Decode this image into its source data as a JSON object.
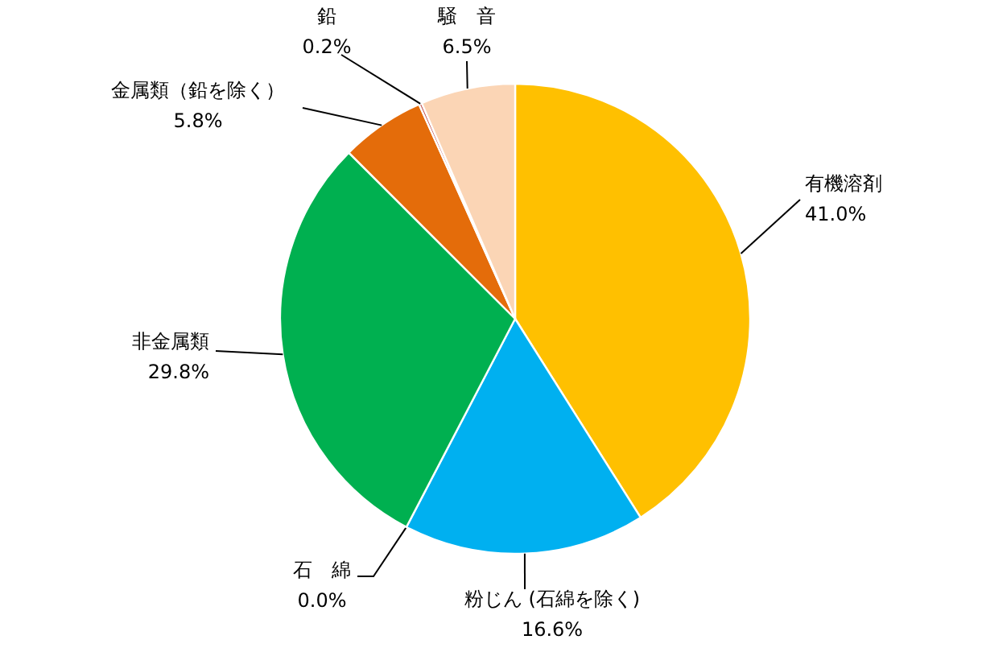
{
  "chart_data": {
    "type": "pie",
    "categories": [
      "有機溶剤",
      "粉じん (石綿を除く)",
      "石　綿",
      "非金属類",
      "金属類（鉛を除く）",
      "鉛",
      "騒　音"
    ],
    "values": [
      41.0,
      16.6,
      0.0,
      29.8,
      5.8,
      0.2,
      6.5
    ],
    "value_labels": [
      "41.0%",
      "16.6%",
      "0.0%",
      "29.8%",
      "5.8%",
      "0.2%",
      "6.5%"
    ],
    "colors": [
      "#ffc000",
      "#00b0f0",
      "#7f7f7f",
      "#00b050",
      "#e46c0a",
      "#c0504d",
      "#fbd5b5"
    ]
  }
}
